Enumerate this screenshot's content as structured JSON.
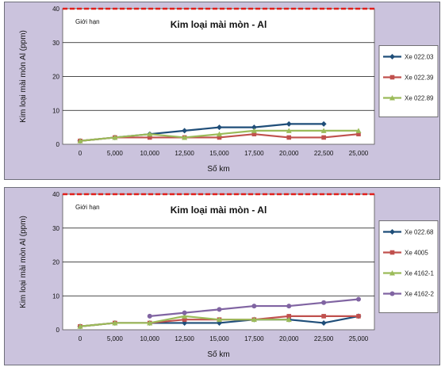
{
  "chart_data": [
    {
      "type": "line",
      "title": "Kim loại mài mòn - Al",
      "limit_label": "Giới hạn",
      "limit_value": 40,
      "limit_color": "#e0201c",
      "xlabel": "Số km",
      "ylabel": "Kim loại mài mòn Al (ppm)",
      "ylim": [
        0,
        40
      ],
      "yticks": [
        "0",
        "10",
        "20",
        "30",
        "40"
      ],
      "categories": [
        "0",
        "5,000",
        "10,000",
        "12,500",
        "15,000",
        "17,500",
        "20,000",
        "22,500",
        "25,000"
      ],
      "grid": true,
      "legend_position": "right",
      "series": [
        {
          "name": "Xe 022.03",
          "color": "#1f4e79",
          "marker": "diamond",
          "values": [
            1,
            2,
            3,
            4,
            5,
            5,
            6,
            6,
            null
          ]
        },
        {
          "name": "Xe 022.39",
          "color": "#c0504d",
          "marker": "square",
          "values": [
            1,
            2,
            2,
            2,
            2,
            3,
            2,
            2,
            3
          ]
        },
        {
          "name": "Xe 022.89",
          "color": "#9bbb59",
          "marker": "triangle",
          "values": [
            1,
            2,
            3,
            2,
            3,
            4,
            4,
            4,
            4
          ]
        }
      ]
    },
    {
      "type": "line",
      "title": "Kim loại mài mòn - Al",
      "limit_label": "Giới hạn",
      "limit_value": 40,
      "limit_color": "#e0201c",
      "xlabel": "Số km",
      "ylabel": "Kim loại mài mòn Al (ppm)",
      "ylim": [
        0,
        40
      ],
      "yticks": [
        "0",
        "10",
        "20",
        "30",
        "40"
      ],
      "categories": [
        "0",
        "5,000",
        "10,000",
        "12,500",
        "15,000",
        "17,500",
        "20,000",
        "22,500",
        "25,000"
      ],
      "grid": true,
      "legend_position": "right",
      "series": [
        {
          "name": "Xe 022.68",
          "color": "#1f4e79",
          "marker": "diamond",
          "values": [
            1,
            2,
            2,
            2,
            2,
            3,
            3,
            2,
            4
          ]
        },
        {
          "name": "Xe 4005",
          "color": "#c0504d",
          "marker": "square",
          "values": [
            1,
            2,
            2,
            3,
            3,
            3,
            4,
            4,
            4
          ]
        },
        {
          "name": "Xe 4162-1",
          "color": "#9bbb59",
          "marker": "triangle",
          "values": [
            1,
            2,
            2,
            4,
            3,
            3,
            3,
            null,
            null
          ]
        },
        {
          "name": "Xe 4162-2",
          "color": "#8064a2",
          "marker": "circle",
          "values": [
            null,
            null,
            4,
            5,
            6,
            7,
            7,
            8,
            9
          ]
        }
      ]
    }
  ]
}
